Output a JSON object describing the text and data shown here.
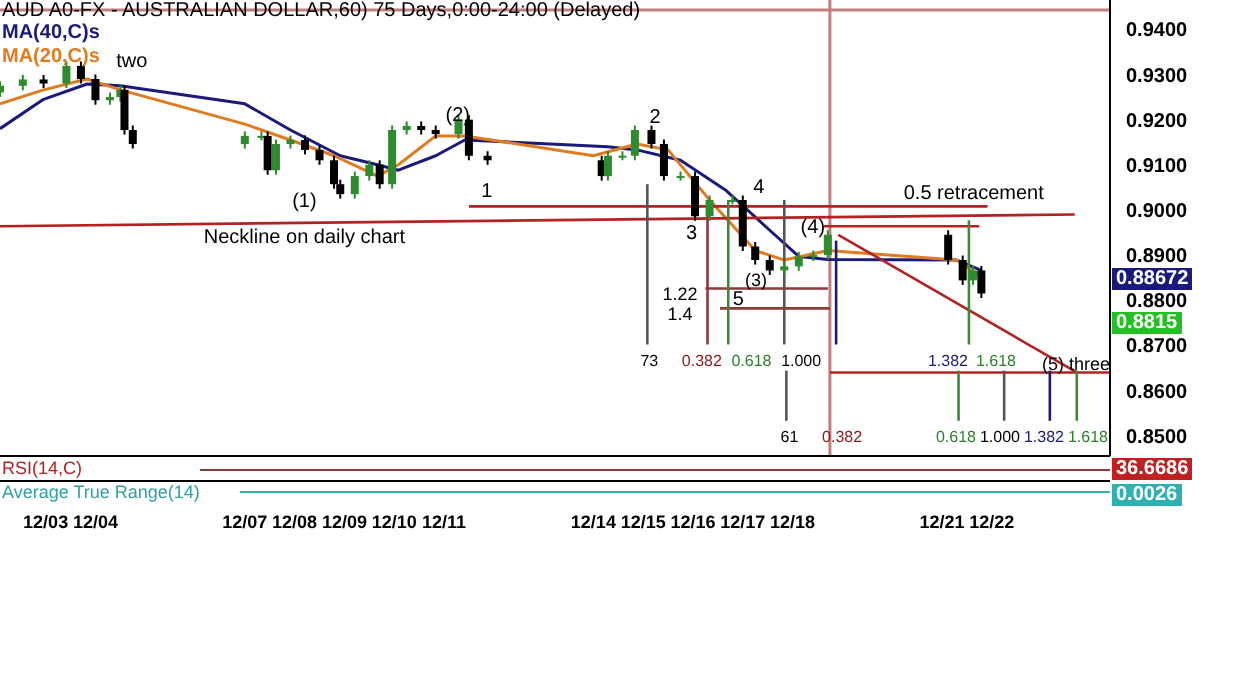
{
  "chart_data": {
    "type": "candlestick",
    "title": "AUD A0-FX - AUSTRALIAN DOLLAR,60) 75 Days,0:00-24:00 (Delayed)",
    "x": [
      "--12-02T02:00",
      "--12-02T13:00",
      "--12-02T23:00",
      "--12-03T10:00",
      "--12-03T17:00",
      "--12-04T00:00",
      "--12-04T07:00",
      "--12-04T12:00",
      "--12-04T14:00",
      "--12-04T18:00",
      "--12-07T00:00",
      "--12-07T08:00",
      "--12-07T11:00",
      "--12-07T15:00",
      "--12-07T22:00",
      "--12-08T05:00",
      "--12-08T12:00",
      "--12-08T19:00",
      "--12-08T22:00",
      "--12-09T05:00",
      "--12-09T12:00",
      "--12-09T17:00",
      "--12-09T23:00",
      "--12-10T06:00",
      "--12-10T13:00",
      "--12-10T20:00",
      "--12-11T07:00",
      "--12-11T12:00",
      "--12-11T21:00",
      "--12-14T04:00",
      "--12-14T07:00",
      "--12-14T14:00",
      "--12-14T20:00",
      "--12-15T04:00",
      "--12-15T10:00",
      "--12-15T18:00",
      "--12-16T01:00",
      "--12-16T08:00",
      "--12-16T19:00",
      "--12-17T00:00",
      "--12-17T06:00",
      "--12-17T13:00",
      "--12-17T20:00",
      "--12-18T03:00",
      "--12-18T10:00",
      "--12-18T17:00",
      "--12-21T03:00",
      "--12-21T10:00",
      "--12-21T15:00",
      "--12-21T19:00"
    ],
    "ohlc": [
      [
        0.926,
        0.9285,
        0.925,
        0.9275
      ],
      [
        0.9275,
        0.9299,
        0.9265,
        0.9289
      ],
      [
        0.9289,
        0.9299,
        0.927,
        0.928
      ],
      [
        0.928,
        0.9329,
        0.927,
        0.9319
      ],
      [
        0.9319,
        0.9329,
        0.928,
        0.929
      ],
      [
        0.929,
        0.93,
        0.9233,
        0.9243
      ],
      [
        0.9243,
        0.926,
        0.9233,
        0.925
      ],
      [
        0.925,
        0.9276,
        0.924,
        0.9266
      ],
      [
        0.9266,
        0.9276,
        0.9167,
        0.9177
      ],
      [
        0.9177,
        0.9187,
        0.9136,
        0.9146
      ],
      [
        0.9146,
        0.9174,
        0.9136,
        0.9164
      ],
      [
        0.9164,
        0.9174,
        0.9154,
        0.9164
      ],
      [
        0.9164,
        0.9174,
        0.9078,
        0.9088
      ],
      [
        0.9088,
        0.9156,
        0.9078,
        0.9146
      ],
      [
        0.9146,
        0.9165,
        0.9136,
        0.9155
      ],
      [
        0.9155,
        0.9165,
        0.9123,
        0.9133
      ],
      [
        0.9133,
        0.9143,
        0.91,
        0.911
      ],
      [
        0.911,
        0.912,
        0.9047,
        0.9057
      ],
      [
        0.9057,
        0.9067,
        0.9025,
        0.9035
      ],
      [
        0.9035,
        0.9085,
        0.9025,
        0.9075
      ],
      [
        0.9075,
        0.911,
        0.9065,
        0.91
      ],
      [
        0.91,
        0.911,
        0.9047,
        0.9057
      ],
      [
        0.9057,
        0.9187,
        0.9047,
        0.9177
      ],
      [
        0.9177,
        0.9196,
        0.9167,
        0.9186
      ],
      [
        0.9186,
        0.9196,
        0.9167,
        0.9177
      ],
      [
        0.9177,
        0.9187,
        0.9158,
        0.9168
      ],
      [
        0.9168,
        0.921,
        0.9158,
        0.92
      ],
      [
        0.92,
        0.921,
        0.911,
        0.912
      ],
      [
        0.912,
        0.913,
        0.91,
        0.911
      ],
      [
        0.911,
        0.912,
        0.9065,
        0.9075
      ],
      [
        0.9075,
        0.913,
        0.9065,
        0.912
      ],
      [
        0.912,
        0.913,
        0.911,
        0.912
      ],
      [
        0.912,
        0.9187,
        0.911,
        0.9177
      ],
      [
        0.9177,
        0.9187,
        0.9136,
        0.9146
      ],
      [
        0.9146,
        0.9156,
        0.9065,
        0.9075
      ],
      [
        0.9075,
        0.9085,
        0.9065,
        0.9075
      ],
      [
        0.9075,
        0.9085,
        0.8976,
        0.8986
      ],
      [
        0.8986,
        0.9032,
        0.8976,
        0.9022
      ],
      [
        0.9022,
        0.9032,
        0.9012,
        0.9022
      ],
      [
        0.9022,
        0.9032,
        0.8909,
        0.8919
      ],
      [
        0.8919,
        0.8929,
        0.8879,
        0.8889
      ],
      [
        0.8889,
        0.8899,
        0.8856,
        0.8866
      ],
      [
        0.8866,
        0.8885,
        0.8856,
        0.8875
      ],
      [
        0.8875,
        0.8907,
        0.8865,
        0.8897
      ],
      [
        0.8897,
        0.891,
        0.8887,
        0.89
      ],
      [
        0.89,
        0.8955,
        0.889,
        0.8945
      ],
      [
        0.8945,
        0.8955,
        0.8879,
        0.8889
      ],
      [
        0.8889,
        0.8899,
        0.8834,
        0.8844
      ],
      [
        0.8844,
        0.8876,
        0.8834,
        0.8866
      ],
      [
        0.8866,
        0.8876,
        0.8805,
        0.8815
      ]
    ],
    "series": [
      {
        "type": "line",
        "name": "MA(40,C)s",
        "color": "#1a1a7a",
        "x": [
          "--12-02T02:00",
          "--12-02T23:00",
          "--12-03T20:00",
          "--12-04T12:00",
          "--12-07T00:00",
          "--12-07T22:00",
          "--12-08T22:00",
          "--12-09T16:00",
          "--12-10T02:00",
          "--12-10T20:00",
          "--12-11T10:00",
          "--12-14T07:00",
          "--12-14T21:00",
          "--12-15T18:00",
          "--12-16T16:00",
          "--12-17T13:00",
          "--12-18T03:00",
          "--12-18T17:00",
          "--12-21T07:00",
          "--12-21T19:00"
        ],
        "values": [
          0.918,
          0.9245,
          0.9279,
          0.9275,
          0.9235,
          0.9177,
          0.912,
          0.91,
          0.9088,
          0.912,
          0.9155,
          0.914,
          0.9133,
          0.911,
          0.9043,
          0.8955,
          0.8897,
          0.889,
          0.8889,
          0.8866
        ]
      },
      {
        "type": "line",
        "name": "MA(20,C)s",
        "color": "#e07b20",
        "x": [
          "--12-02T02:00",
          "--12-02T23:00",
          "--12-03T20:00",
          "--12-04T12:00",
          "--12-07T00:00",
          "--12-07T22:00",
          "--12-08T19:00",
          "--12-09T16:00",
          "--12-10T02:00",
          "--12-10T20:00",
          "--12-11T10:00",
          "--12-14T00:00",
          "--12-14T21:00",
          "--12-15T12:00",
          "--12-16T08:00",
          "--12-17T06:00",
          "--12-17T20:00",
          "--12-18T17:00",
          "--12-21T07:00",
          "--12-21T19:00"
        ],
        "values": [
          0.9235,
          0.9266,
          0.929,
          0.9266,
          0.919,
          0.9155,
          0.912,
          0.9075,
          0.91,
          0.9164,
          0.9164,
          0.912,
          0.9146,
          0.9133,
          0.9022,
          0.891,
          0.8889,
          0.891,
          0.8889,
          0.8853
        ]
      },
      {
        "type": "line",
        "color": "#b22222",
        "x": [
          "--12-02T02:00",
          "--12-23T16:00"
        ],
        "values": [
          0.8964,
          0.899
        ]
      },
      {
        "type": "line",
        "color": "#b22222",
        "x": [
          "--12-11T12:00",
          "--12-21T22:00"
        ],
        "values": [
          0.9008,
          0.9008
        ]
      },
      {
        "type": "line",
        "color": "#8b3a3a",
        "x": [
          "--12-16T06:00",
          "--12-18T17:00"
        ],
        "values": [
          0.8826,
          0.8826
        ]
      },
      {
        "type": "line",
        "color": "#8b3a3a",
        "x": [
          "--12-16T13:00",
          "--12-18T18:00"
        ],
        "values": [
          0.8782,
          0.8782
        ]
      },
      {
        "type": "line",
        "color": "#b22222",
        "x": [
          "--12-18T15:00",
          "--12-21T18:00"
        ],
        "values": [
          0.8964,
          0.8964
        ]
      },
      {
        "type": "line",
        "color": "#b22222",
        "x": [
          "--12-18T18:00",
          "--12-24T09:00"
        ],
        "values": [
          0.864,
          0.864
        ]
      },
      {
        "type": "line",
        "color": "#b22222",
        "x": [
          "--12-18T22:00",
          "--12-23T17:00"
        ],
        "values": [
          0.8945,
          0.864
        ]
      },
      {
        "type": "line",
        "color": "#555555",
        "x": [
          "--12-15T02:00",
          "--12-15T02:00"
        ],
        "values": [
          0.9057,
          0.8702
        ]
      },
      {
        "type": "line",
        "color": "#8b3a3a",
        "x": [
          "--12-16T07:00",
          "--12-16T07:00"
        ],
        "values": [
          0.9022,
          0.8702
        ]
      },
      {
        "type": "line",
        "color": "#3a8a3a",
        "x": [
          "--12-16T17:00",
          "--12-16T17:00"
        ],
        "values": [
          0.9022,
          0.8702
        ]
      },
      {
        "type": "line",
        "color": "#555555",
        "x": [
          "--12-17T20:00",
          "--12-17T20:00"
        ],
        "values": [
          0.9022,
          0.8702
        ]
      },
      {
        "type": "line",
        "color": "#1a1a7a",
        "x": [
          "--12-18T21:00",
          "--12-18T21:00"
        ],
        "values": [
          0.8932,
          0.8702
        ]
      },
      {
        "type": "line",
        "color": "#3a8a3a",
        "x": [
          "--12-21T13:00",
          "--12-21T13:00"
        ],
        "values": [
          0.8977,
          0.8702
        ]
      },
      {
        "type": "line",
        "color": "#555555",
        "x": [
          "--12-17T21:00",
          "--12-17T21:00"
        ],
        "values": [
          0.8644,
          0.8533
        ]
      },
      {
        "type": "line",
        "color": "#3a8a3a",
        "x": [
          "--12-21T08:00",
          "--12-21T08:00"
        ],
        "values": [
          0.8644,
          0.8533
        ]
      },
      {
        "type": "line",
        "color": "#555555",
        "x": [
          "--12-22T06:00",
          "--12-22T06:00"
        ],
        "values": [
          0.8644,
          0.8533
        ]
      },
      {
        "type": "line",
        "color": "#1a1a7a",
        "x": [
          "--12-23T04:00",
          "--12-23T04:00"
        ],
        "values": [
          0.8644,
          0.8533
        ]
      },
      {
        "type": "line",
        "color": "#3a8a3a",
        "x": [
          "--12-23T17:00",
          "--12-23T17:00"
        ],
        "values": [
          0.8644,
          0.8533
        ]
      }
    ],
    "ref_lines": [
      {
        "axis": "x",
        "value": "--12-18T18:00",
        "color": "#c08080"
      },
      {
        "axis": "y",
        "value": 0.9443,
        "color": "#c08080"
      }
    ],
    "xlim": [
      "--12-02T02:00",
      "--12-24T09:00"
    ],
    "xticks": [
      {
        "value": "--12-03",
        "label": "12/03"
      },
      {
        "value": "--12-04",
        "label": "12/04"
      },
      {
        "value": "--12-07",
        "label": "12/07"
      },
      {
        "value": "--12-08",
        "label": "12/08"
      },
      {
        "value": "--12-09",
        "label": "12/09"
      },
      {
        "value": "--12-10",
        "label": "12/10"
      },
      {
        "value": "--12-11",
        "label": "12/11"
      },
      {
        "value": "--12-14",
        "label": "12/14"
      },
      {
        "value": "--12-15",
        "label": "12/15"
      },
      {
        "value": "--12-16",
        "label": "12/16"
      },
      {
        "value": "--12-17",
        "label": "12/17"
      },
      {
        "value": "--12-18",
        "label": "12/18"
      },
      {
        "value": "--12-21",
        "label": "12/21"
      },
      {
        "value": "--12-22",
        "label": "12/22"
      }
    ],
    "ylim": [
      0.8455,
      0.9465
    ],
    "yticks": [
      {
        "value": 0.85,
        "label": "0.8500"
      },
      {
        "value": 0.86,
        "label": "0.8600"
      },
      {
        "value": 0.87,
        "label": "0.8700"
      },
      {
        "value": 0.88,
        "label": "0.8800"
      },
      {
        "value": 0.89,
        "label": "0.8900"
      },
      {
        "value": 0.9,
        "label": "0.9000"
      },
      {
        "value": 0.91,
        "label": "0.9100"
      },
      {
        "value": 0.92,
        "label": "0.9200"
      },
      {
        "value": 0.93,
        "label": "0.9300"
      },
      {
        "value": 0.94,
        "label": "0.9400"
      }
    ],
    "legend": "top left",
    "annotations": [
      "two",
      "(1)",
      "Neckline on daily chart",
      "(2)",
      "1",
      "2",
      "3",
      "4",
      "(4)",
      "0.5 retracement",
      "1.22",
      "1.4",
      "5",
      "(3)",
      "73",
      "0.382",
      "0.618",
      "1.000",
      "1.382",
      "1.618",
      "(5) three",
      "61",
      "0.382",
      "0.618",
      "1.000",
      "1.382",
      "1.618",
      "0.88672",
      "0.8815",
      "RSI(14,C)",
      "36.6686",
      "Average True Range(14)",
      "0.0026"
    ]
  }
}
